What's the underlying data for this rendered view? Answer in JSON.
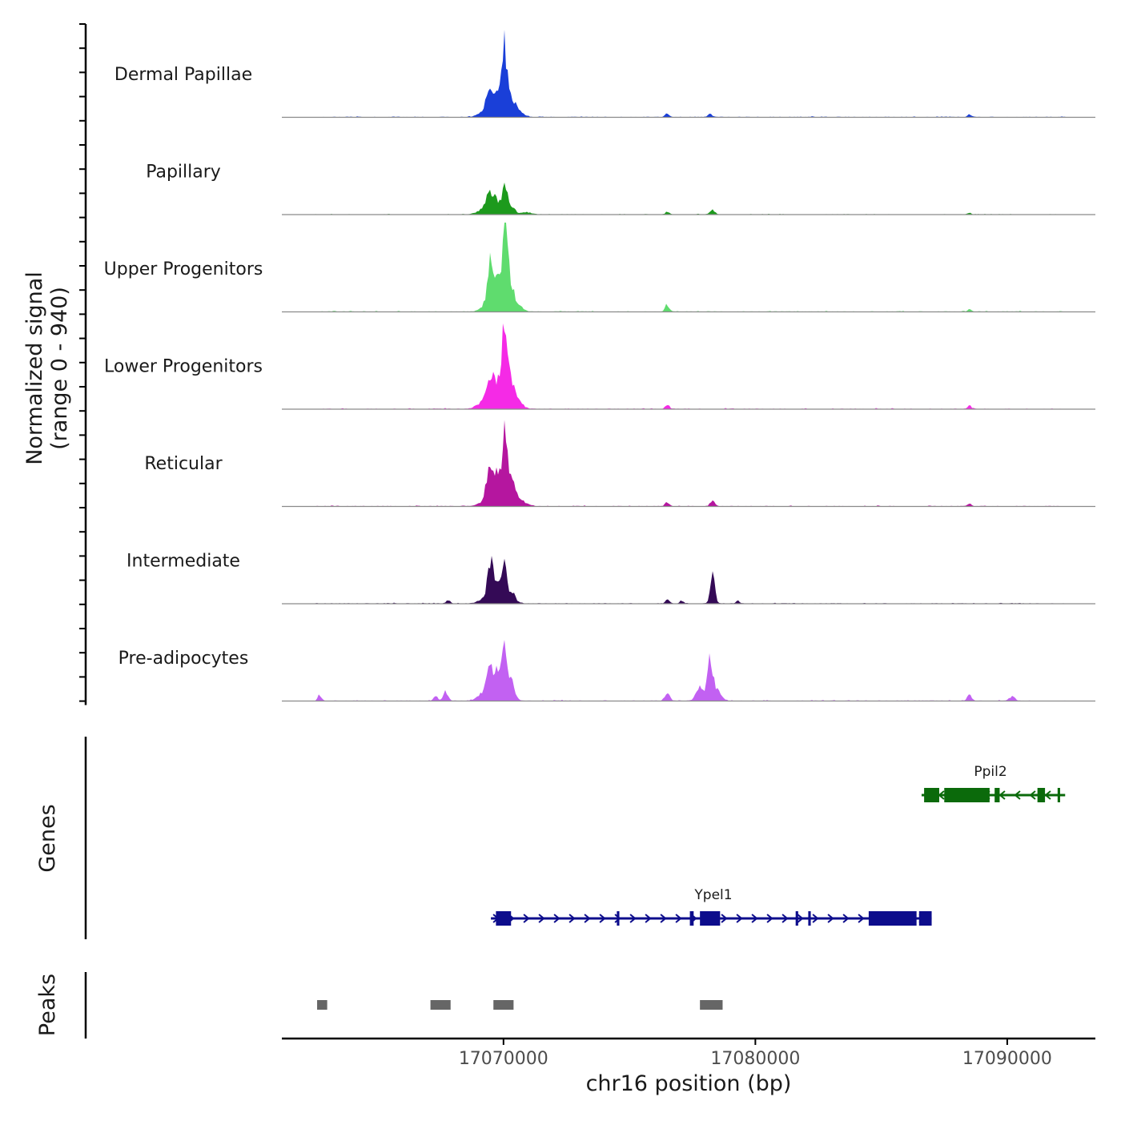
{
  "chart_data": {
    "type": "area",
    "title": "",
    "ylabel_line1": "Normalized signal",
    "ylabel_line2": "(range 0 - 940)",
    "xlabel": "chr16 position (bp)",
    "xlim": [
      17061200,
      17093500
    ],
    "ylim": [
      0,
      940
    ],
    "x_ticks": [
      17070000,
      17080000,
      17090000
    ],
    "x_tick_labels": [
      "17070000",
      "17080000",
      "17090000"
    ],
    "series": [
      {
        "name": "Dermal Papillae",
        "color": "#1a3fd8",
        "scale": 1.0,
        "peaks": [
          {
            "x": 17069500,
            "v": 230,
            "w": 180
          },
          {
            "x": 17069850,
            "v": 200,
            "w": 150
          },
          {
            "x": 17070050,
            "v": 610,
            "w": 90
          },
          {
            "x": 17070300,
            "v": 180,
            "w": 150
          },
          {
            "x": 17069200,
            "v": 50,
            "w": 220
          },
          {
            "x": 17070600,
            "v": 60,
            "w": 200
          },
          {
            "x": 17076500,
            "v": 35,
            "w": 80
          },
          {
            "x": 17078200,
            "v": 30,
            "w": 90
          },
          {
            "x": 17088500,
            "v": 25,
            "w": 90
          }
        ]
      },
      {
        "name": "Papillary",
        "color": "#1d9a1d",
        "scale": 0.7,
        "peaks": [
          {
            "x": 17069500,
            "v": 280,
            "w": 180
          },
          {
            "x": 17069850,
            "v": 150,
            "w": 130
          },
          {
            "x": 17070050,
            "v": 420,
            "w": 90
          },
          {
            "x": 17070300,
            "v": 120,
            "w": 140
          },
          {
            "x": 17069200,
            "v": 60,
            "w": 250
          },
          {
            "x": 17070900,
            "v": 35,
            "w": 200
          },
          {
            "x": 17076500,
            "v": 35,
            "w": 80
          },
          {
            "x": 17078300,
            "v": 70,
            "w": 100
          },
          {
            "x": 17088500,
            "v": 20,
            "w": 80
          }
        ]
      },
      {
        "name": "Upper Progenitors",
        "color": "#5fdc6e",
        "scale": 1.0,
        "peaks": [
          {
            "x": 17069500,
            "v": 540,
            "w": 110
          },
          {
            "x": 17069800,
            "v": 330,
            "w": 110
          },
          {
            "x": 17070050,
            "v": 900,
            "w": 80
          },
          {
            "x": 17070250,
            "v": 330,
            "w": 120
          },
          {
            "x": 17069350,
            "v": 80,
            "w": 220
          },
          {
            "x": 17070500,
            "v": 70,
            "w": 220
          },
          {
            "x": 17076500,
            "v": 75,
            "w": 80
          },
          {
            "x": 17088500,
            "v": 20,
            "w": 80
          }
        ]
      },
      {
        "name": "Lower Progenitors",
        "color": "#f52ae6",
        "scale": 1.0,
        "peaks": [
          {
            "x": 17069500,
            "v": 330,
            "w": 160
          },
          {
            "x": 17069850,
            "v": 310,
            "w": 140
          },
          {
            "x": 17070050,
            "v": 770,
            "w": 90
          },
          {
            "x": 17070300,
            "v": 300,
            "w": 150
          },
          {
            "x": 17069200,
            "v": 60,
            "w": 250
          },
          {
            "x": 17070600,
            "v": 60,
            "w": 200
          },
          {
            "x": 17076500,
            "v": 45,
            "w": 80
          },
          {
            "x": 17088500,
            "v": 35,
            "w": 80
          }
        ]
      },
      {
        "name": "Reticular",
        "color": "#b5169f",
        "scale": 1.0,
        "peaks": [
          {
            "x": 17069500,
            "v": 430,
            "w": 140
          },
          {
            "x": 17069850,
            "v": 300,
            "w": 140
          },
          {
            "x": 17070050,
            "v": 680,
            "w": 90
          },
          {
            "x": 17070300,
            "v": 280,
            "w": 150
          },
          {
            "x": 17069300,
            "v": 60,
            "w": 250
          },
          {
            "x": 17070700,
            "v": 60,
            "w": 200
          },
          {
            "x": 17076500,
            "v": 40,
            "w": 80
          },
          {
            "x": 17078300,
            "v": 55,
            "w": 90
          },
          {
            "x": 17088500,
            "v": 25,
            "w": 80
          }
        ]
      },
      {
        "name": "Intermediate",
        "color": "#340a56",
        "scale": 1.0,
        "peaks": [
          {
            "x": 17069500,
            "v": 470,
            "w": 120
          },
          {
            "x": 17069800,
            "v": 180,
            "w": 110
          },
          {
            "x": 17070050,
            "v": 490,
            "w": 90
          },
          {
            "x": 17070350,
            "v": 110,
            "w": 130
          },
          {
            "x": 17069200,
            "v": 40,
            "w": 200
          },
          {
            "x": 17078300,
            "v": 290,
            "w": 90
          },
          {
            "x": 17076500,
            "v": 40,
            "w": 80
          },
          {
            "x": 17077100,
            "v": 30,
            "w": 70
          },
          {
            "x": 17079300,
            "v": 25,
            "w": 80
          },
          {
            "x": 17067800,
            "v": 30,
            "w": 80
          }
        ]
      },
      {
        "name": "Pre-adipocytes",
        "color": "#c261f2",
        "scale": 1.0,
        "peaks": [
          {
            "x": 17069500,
            "v": 300,
            "w": 150
          },
          {
            "x": 17069800,
            "v": 270,
            "w": 140
          },
          {
            "x": 17070050,
            "v": 560,
            "w": 90
          },
          {
            "x": 17070300,
            "v": 200,
            "w": 140
          },
          {
            "x": 17069200,
            "v": 80,
            "w": 220
          },
          {
            "x": 17078200,
            "v": 470,
            "w": 100
          },
          {
            "x": 17077800,
            "v": 150,
            "w": 140
          },
          {
            "x": 17078500,
            "v": 120,
            "w": 150
          },
          {
            "x": 17076500,
            "v": 90,
            "w": 90
          },
          {
            "x": 17067700,
            "v": 90,
            "w": 100
          },
          {
            "x": 17067300,
            "v": 50,
            "w": 80
          },
          {
            "x": 17062700,
            "v": 60,
            "w": 70
          },
          {
            "x": 17088500,
            "v": 60,
            "w": 90
          },
          {
            "x": 17090200,
            "v": 50,
            "w": 100
          }
        ]
      }
    ],
    "genes_label": "Genes",
    "genes": [
      {
        "name": "Ppil2",
        "color": "#0b6a0b",
        "strand": "-",
        "start": 17086600,
        "end": 17092300,
        "exons": [
          [
            17086700,
            17087300
          ],
          [
            17087500,
            17089300
          ],
          [
            17089500,
            17089700
          ],
          [
            17091200,
            17091500
          ],
          [
            17092000,
            17092100
          ]
        ]
      },
      {
        "name": "Ypel1",
        "color": "#0d0d8c",
        "strand": "+",
        "start": 17069500,
        "end": 17087000,
        "exons": [
          [
            17069700,
            17070300
          ],
          [
            17074500,
            17074600
          ],
          [
            17077400,
            17077550
          ],
          [
            17077800,
            17078600
          ],
          [
            17081600,
            17081700
          ],
          [
            17082100,
            17082200
          ],
          [
            17084500,
            17086400
          ],
          [
            17086500,
            17087000
          ]
        ]
      }
    ],
    "peaks_label": "Peaks",
    "peak_regions": [
      [
        17062600,
        17063000
      ],
      [
        17067100,
        17067900
      ],
      [
        17069600,
        17070400
      ],
      [
        17077800,
        17078700
      ]
    ]
  }
}
